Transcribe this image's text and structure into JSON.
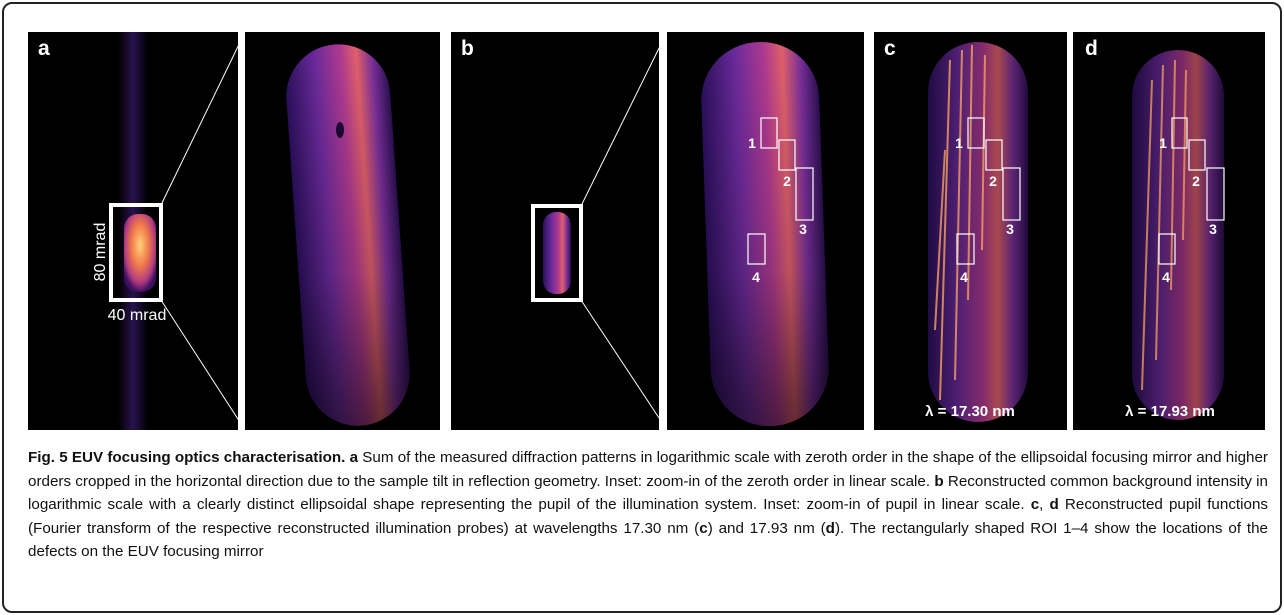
{
  "panels": [
    {
      "label": "a",
      "annotations": [
        "80 mrad",
        "40 mrad"
      ]
    },
    {
      "label": "b",
      "roi_labels": [
        "1",
        "2",
        "3",
        "4"
      ]
    },
    {
      "label": "c",
      "roi_labels": [
        "1",
        "2",
        "3",
        "4"
      ],
      "wavelength": "λ = 17.30 nm"
    },
    {
      "label": "d",
      "roi_labels": [
        "1",
        "2",
        "3",
        "4"
      ],
      "wavelength": "λ = 17.93 nm"
    }
  ],
  "caption": {
    "runs": [
      {
        "text": "Fig. 5 EUV focusing optics characterisation. a",
        "bold": true
      },
      {
        "text": " Sum of the measured diffraction patterns in logarithmic scale with zeroth order in the shape of the ellipsoidal focusing mirror and higher orders cropped in the horizontal direction due to the sample tilt in reflection geometry. Inset: zoom-in of the zeroth order in linear scale. ",
        "bold": false
      },
      {
        "text": "b",
        "bold": true
      },
      {
        "text": " Reconstructed common background intensity in logarithmic scale with a clearly distinct ellipsoidal shape representing the pupil of the illumination system. Inset: zoom-in of pupil in linear scale. ",
        "bold": false
      },
      {
        "text": "c",
        "bold": true
      },
      {
        "text": ", ",
        "bold": false
      },
      {
        "text": "d",
        "bold": true
      },
      {
        "text": " Reconstructed pupil functions (Fourier transform of the respective reconstructed illumination probes) at wavelengths 17.30 nm (",
        "bold": false
      },
      {
        "text": "c",
        "bold": true
      },
      {
        "text": ") and 17.93 nm (",
        "bold": false
      },
      {
        "text": "d",
        "bold": true
      },
      {
        "text": "). The rectangularly shaped ROI 1–4 show the locations of the defects on the EUV focusing mirror",
        "bold": false
      }
    ]
  }
}
